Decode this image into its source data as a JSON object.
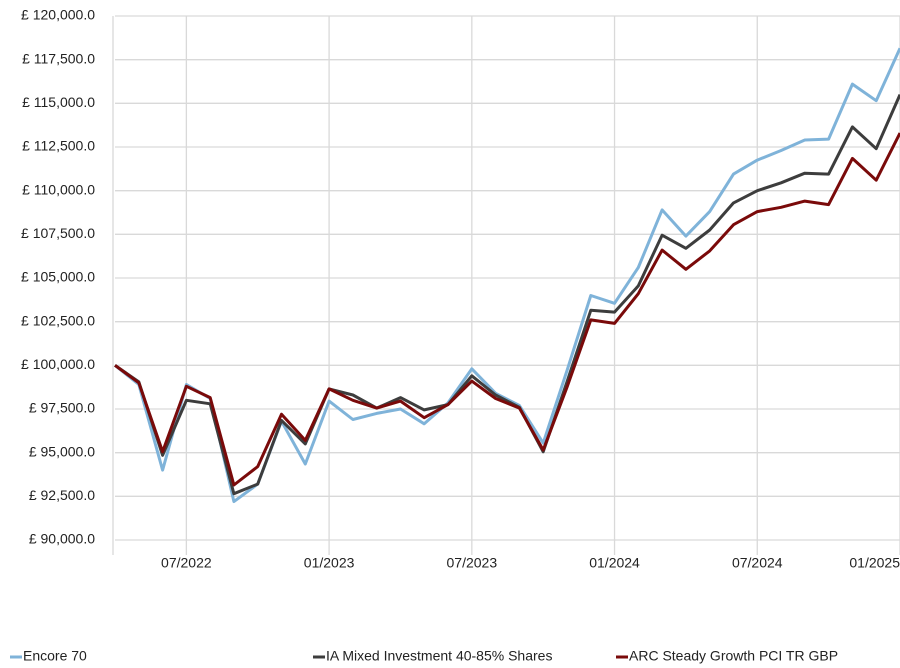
{
  "chart_data": {
    "type": "line",
    "x": [
      "04/2022",
      "05/2022",
      "06/2022",
      "07/2022",
      "08/2022",
      "09/2022",
      "10/2022",
      "11/2022",
      "12/2022",
      "01/2023",
      "02/2023",
      "03/2023",
      "04/2023",
      "05/2023",
      "06/2023",
      "07/2023",
      "08/2023",
      "09/2023",
      "10/2023",
      "11/2023",
      "12/2023",
      "01/2024",
      "02/2024",
      "03/2024",
      "04/2024",
      "05/2024",
      "06/2024",
      "07/2024",
      "08/2024",
      "09/2024",
      "10/2024",
      "11/2024",
      "12/2024",
      "01/2025"
    ],
    "xticks": [
      "07/2022",
      "01/2023",
      "07/2023",
      "01/2024",
      "07/2024",
      "01/2025"
    ],
    "ylim": [
      90000,
      120000
    ],
    "yticks": [
      {
        "value": 90000,
        "label": "£ 90,000.0"
      },
      {
        "value": 92500,
        "label": "£ 92,500.0"
      },
      {
        "value": 95000,
        "label": "£ 95,000.0"
      },
      {
        "value": 97500,
        "label": "£ 97,500.0"
      },
      {
        "value": 100000,
        "label": "£ 100,000.0"
      },
      {
        "value": 102500,
        "label": "£ 102,500.0"
      },
      {
        "value": 105000,
        "label": "£ 105,000.0"
      },
      {
        "value": 107500,
        "label": "£ 107,500.0"
      },
      {
        "value": 110000,
        "label": "£ 110,000.0"
      },
      {
        "value": 112500,
        "label": "£ 112,500.0"
      },
      {
        "value": 115000,
        "label": "£ 115,000.0"
      },
      {
        "value": 117500,
        "label": "£ 117,500.0"
      },
      {
        "value": 120000,
        "label": "£ 120,000.0"
      }
    ],
    "grid": true,
    "legend": "bottom",
    "series": [
      {
        "name": "Encore 70",
        "color": "#7fb3d9",
        "values": [
          100000,
          98900,
          94000,
          98900,
          98100,
          92200,
          93200,
          96800,
          94350,
          97950,
          96900,
          97250,
          97500,
          96650,
          97850,
          99800,
          98400,
          97700,
          95550,
          99700,
          104000,
          103550,
          105600,
          108900,
          107400,
          108800,
          110950,
          111750,
          112300,
          112900,
          112950,
          116100,
          115150,
          118150
        ]
      },
      {
        "name": "IA Mixed Investment 40-85% Shares",
        "color": "#3d3d3d",
        "values": [
          100000,
          99050,
          94850,
          98000,
          97800,
          92650,
          93200,
          96850,
          95500,
          98650,
          98300,
          97550,
          98150,
          97450,
          97750,
          99400,
          98300,
          97600,
          95050,
          99050,
          103150,
          103050,
          104550,
          107450,
          106700,
          107750,
          109300,
          110000,
          110450,
          111000,
          110950,
          113650,
          112400,
          115500
        ]
      },
      {
        "name": "ARC Steady Growth PCI TR GBP",
        "color": "#7a0a0a",
        "values": [
          100000,
          99000,
          95050,
          98800,
          98150,
          93150,
          94200,
          97200,
          95700,
          98650,
          98000,
          97550,
          97950,
          97000,
          97750,
          99100,
          98100,
          97550,
          95150,
          98750,
          102600,
          102400,
          104100,
          106600,
          105500,
          106550,
          108050,
          108800,
          109050,
          109400,
          109200,
          111850,
          110600,
          113300
        ]
      }
    ]
  }
}
